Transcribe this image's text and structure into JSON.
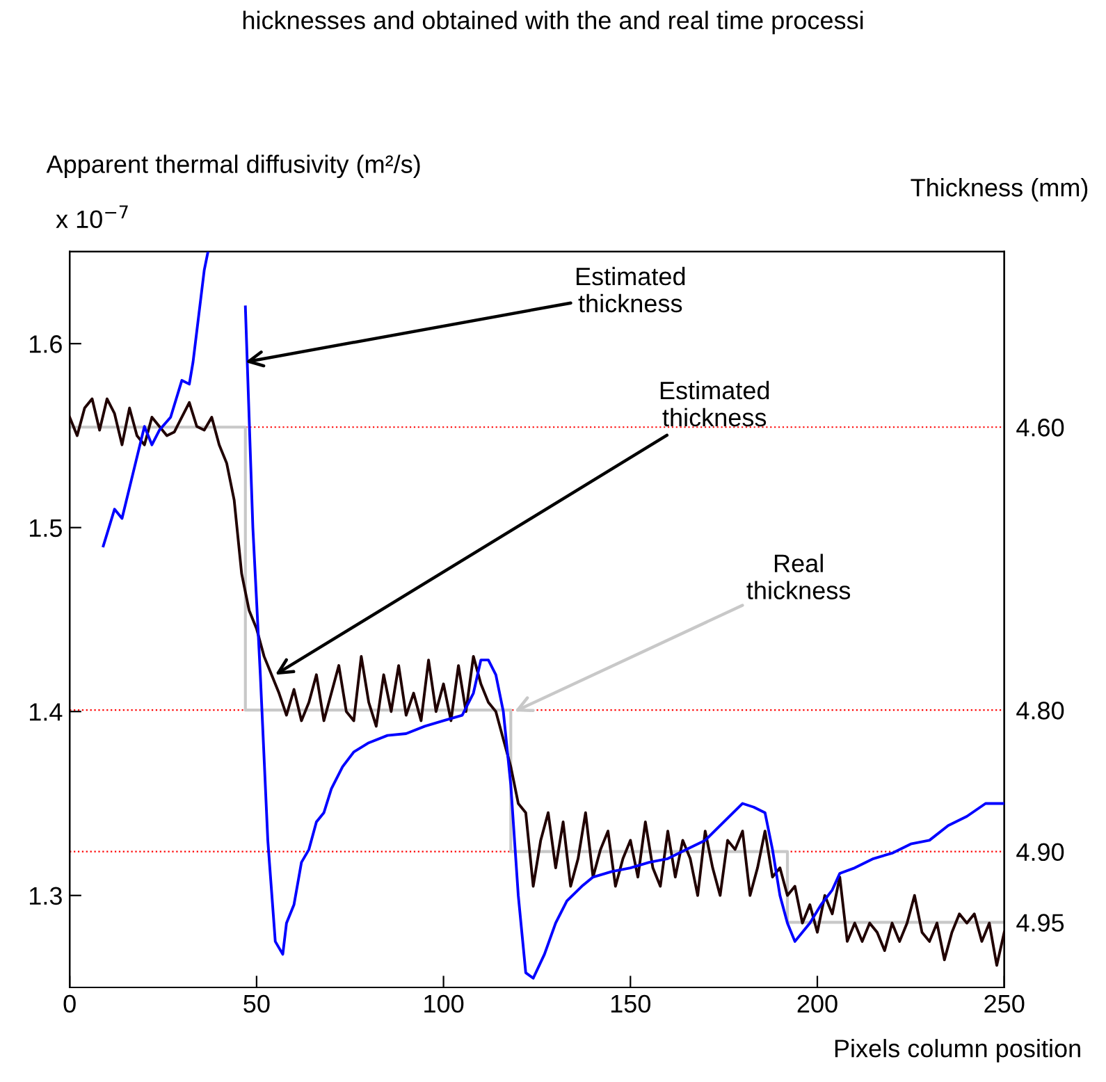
{
  "chart_data": {
    "type": "line",
    "xlabel": "Pixels column position",
    "ylabel": "Apparent thermal diffusivity (m²/s)",
    "y2label": "Thickness (mm)",
    "annotations": [
      "hicknesses and obtained with the and real time processi",
      "x 10$^{−7}$",
      {
        "text": "Estimated\nthickness",
        "x": 47,
        "y": 1.59
      },
      {
        "text": "Estimated\nthickness",
        "x": 55,
        "y": 1.42
      },
      {
        "text": "Real\nthickness",
        "x": 119,
        "y": 1.4
      }
    ],
    "xlim": [
      0,
      250
    ],
    "xticks": [
      0,
      50,
      100,
      150,
      200,
      250
    ],
    "ylim": [
      1.25,
      1.65
    ],
    "yticks": [
      1.3,
      1.4,
      1.5,
      1.6
    ],
    "y2lim": [
      4.996,
      4.476
    ],
    "y2ticks": [
      {
        "value": 4.6,
        "label": "4.60"
      },
      {
        "value": 4.8,
        "label": "4.80"
      },
      {
        "value": 4.9,
        "label": "4.90"
      },
      {
        "value": 4.95,
        "label": "4.95"
      }
    ],
    "grid": false,
    "ref_lines": [
      {
        "axis": "y2",
        "value": 4.6,
        "color": "#ff0000",
        "line_style": "dotted"
      },
      {
        "axis": "y2",
        "value": 4.8,
        "color": "#ff0000",
        "line_style": "dotted"
      },
      {
        "axis": "y2",
        "value": 4.9,
        "color": "#ff0000",
        "line_style": "dotted"
      }
    ],
    "series": [
      {
        "type": "step",
        "axis": "y2",
        "color": "#c8c8c8",
        "x": [
          0,
          47,
          118,
          192,
          250
        ],
        "values": [
          4.6,
          4.8,
          4.9,
          4.95,
          4.95
        ]
      },
      {
        "color": "#200000",
        "x": [
          0,
          2,
          4,
          6,
          8,
          10,
          12,
          14,
          16,
          18,
          20,
          22,
          24,
          26,
          28,
          30,
          32,
          34,
          36,
          38,
          40,
          42,
          44,
          46,
          48,
          50,
          52,
          54,
          56,
          58,
          60,
          62,
          64,
          66,
          68,
          70,
          72,
          74,
          76,
          78,
          80,
          82,
          84,
          86,
          88,
          90,
          92,
          94,
          96,
          98,
          100,
          102,
          104,
          106,
          108,
          110,
          112,
          114,
          116,
          118,
          120,
          122,
          124,
          126,
          128,
          130,
          132,
          134,
          136,
          138,
          140,
          142,
          144,
          146,
          148,
          150,
          152,
          154,
          156,
          158,
          160,
          162,
          164,
          166,
          168,
          170,
          172,
          174,
          176,
          178,
          180,
          182,
          184,
          186,
          188,
          190,
          192,
          194,
          196,
          198,
          200,
          202,
          204,
          206,
          208,
          210,
          212,
          214,
          216,
          218,
          220,
          222,
          224,
          226,
          228,
          230,
          232,
          234,
          236,
          238,
          240,
          242,
          244,
          246,
          248,
          250
        ],
        "values": [
          1.56,
          1.55,
          1.565,
          1.57,
          1.553,
          1.57,
          1.562,
          1.545,
          1.565,
          1.55,
          1.545,
          1.56,
          1.555,
          1.55,
          1.552,
          1.56,
          1.568,
          1.555,
          1.553,
          1.56,
          1.545,
          1.535,
          1.515,
          1.475,
          1.455,
          1.445,
          1.43,
          1.42,
          1.41,
          1.398,
          1.412,
          1.395,
          1.405,
          1.42,
          1.395,
          1.41,
          1.425,
          1.4,
          1.395,
          1.43,
          1.405,
          1.392,
          1.42,
          1.4,
          1.425,
          1.398,
          1.41,
          1.395,
          1.428,
          1.4,
          1.415,
          1.395,
          1.425,
          1.4,
          1.43,
          1.415,
          1.405,
          1.4,
          1.385,
          1.37,
          1.35,
          1.345,
          1.305,
          1.33,
          1.345,
          1.315,
          1.34,
          1.305,
          1.32,
          1.345,
          1.31,
          1.325,
          1.335,
          1.305,
          1.32,
          1.33,
          1.31,
          1.34,
          1.315,
          1.305,
          1.335,
          1.31,
          1.33,
          1.32,
          1.3,
          1.335,
          1.315,
          1.3,
          1.33,
          1.325,
          1.335,
          1.3,
          1.315,
          1.335,
          1.31,
          1.315,
          1.3,
          1.305,
          1.285,
          1.295,
          1.28,
          1.3,
          1.29,
          1.31,
          1.275,
          1.285,
          1.275,
          1.285,
          1.28,
          1.27,
          1.285,
          1.275,
          1.285,
          1.3,
          1.28,
          1.275,
          1.285,
          1.265,
          1.28,
          1.29,
          1.285,
          1.29,
          1.275,
          1.285,
          1.262,
          1.28
        ]
      },
      {
        "color": "#0000ff",
        "x": [
          9,
          12,
          14,
          17,
          20,
          22,
          24,
          27,
          30,
          32,
          33,
          36,
          37,
          39,
          41,
          43,
          45,
          47,
          49,
          51,
          53,
          55,
          57,
          58,
          60,
          62,
          64,
          66,
          68,
          70,
          73,
          76,
          80,
          85,
          90,
          95,
          100,
          105,
          108,
          110,
          112,
          114,
          116,
          118,
          120,
          122,
          124,
          127,
          130,
          133,
          137,
          140,
          145,
          150,
          155,
          160,
          165,
          170,
          175,
          180,
          183,
          186,
          188,
          190,
          192,
          194,
          198,
          201,
          204,
          206,
          210,
          215,
          220,
          225,
          230,
          235,
          240,
          245,
          250
        ],
        "values": [
          1.49,
          1.51,
          1.505,
          1.53,
          1.555,
          1.545,
          1.553,
          1.56,
          1.58,
          1.578,
          1.59,
          1.64,
          1.65,
          null,
          null,
          null,
          null,
          1.62,
          1.5,
          1.42,
          1.33,
          1.275,
          1.268,
          1.285,
          1.295,
          1.318,
          1.325,
          1.34,
          1.345,
          1.358,
          1.37,
          1.378,
          1.383,
          1.387,
          1.388,
          1.392,
          1.395,
          1.398,
          1.41,
          1.428,
          1.428,
          1.42,
          1.4,
          1.36,
          1.3,
          1.258,
          1.255,
          1.268,
          1.285,
          1.297,
          1.305,
          1.31,
          1.313,
          1.315,
          1.318,
          1.32,
          1.325,
          1.33,
          1.34,
          1.35,
          1.348,
          1.345,
          1.325,
          1.3,
          1.285,
          1.275,
          1.285,
          1.295,
          1.303,
          1.312,
          1.315,
          1.32,
          1.323,
          1.328,
          1.33,
          1.338,
          1.343,
          1.35,
          1.35
        ]
      }
    ]
  }
}
